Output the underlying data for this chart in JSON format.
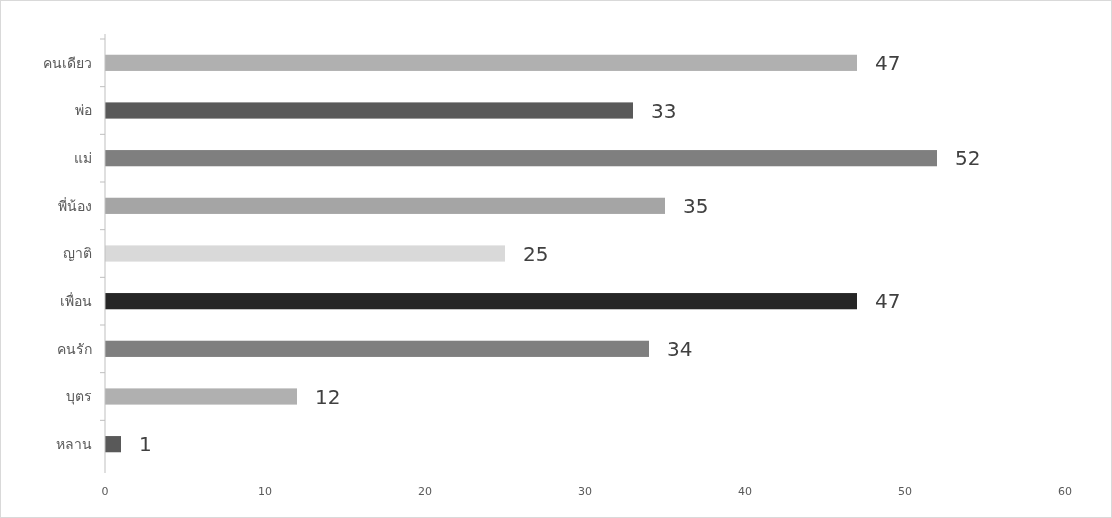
{
  "chart_data": {
    "type": "bar",
    "orientation": "horizontal",
    "categories": [
      "คนเดียว",
      "พ่อ",
      "แม่",
      "พี่น้อง",
      "ญาติ",
      "เพื่อน",
      "คนรัก",
      "บุตร",
      "หลาน"
    ],
    "values": [
      47,
      33,
      52,
      35,
      25,
      47,
      34,
      12,
      1
    ],
    "colors": [
      "#b0b0b0",
      "#595959",
      "#7f7f7f",
      "#a5a5a5",
      "#d9d9d9",
      "#262626",
      "#7f7f7f",
      "#b0b0b0",
      "#595959"
    ],
    "xlim": [
      0,
      60
    ],
    "xticks": [
      0,
      10,
      20,
      30,
      40,
      50,
      60
    ],
    "data_labels": true
  }
}
